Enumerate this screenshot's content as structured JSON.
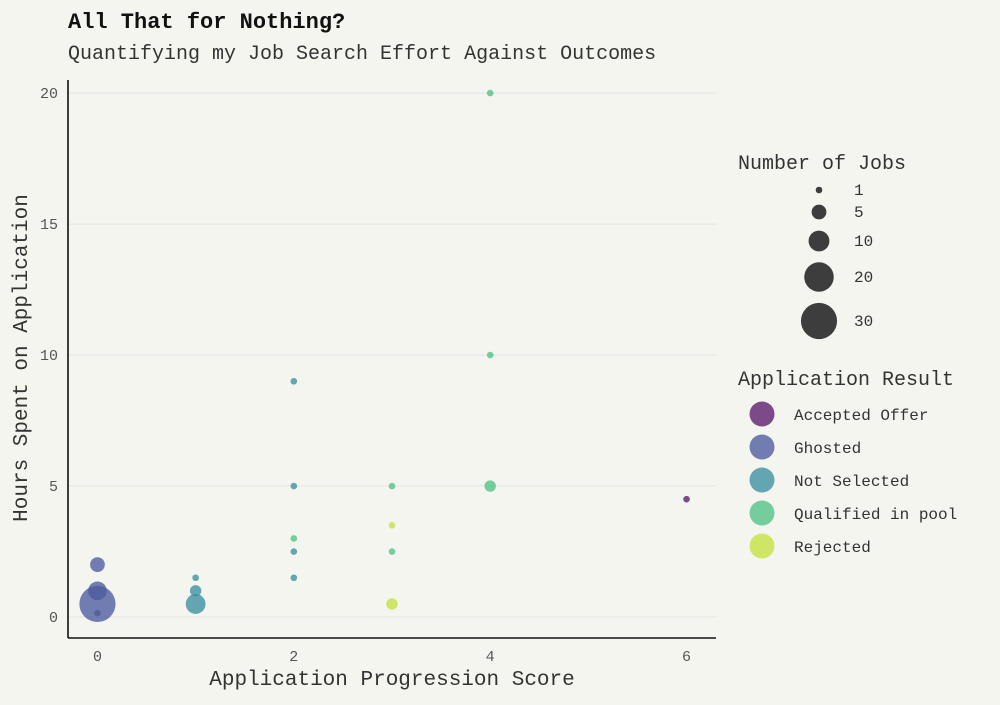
{
  "chart_data": {
    "type": "scatter",
    "title": "All That for Nothing?",
    "subtitle": "Quantifying my Job Search Effort Against Outcomes",
    "xlabel": "Application Progression Score",
    "ylabel": "Hours Spent on Application",
    "xlim": [
      -0.3,
      6.3
    ],
    "ylim": [
      -0.8,
      20.5
    ],
    "x_ticks": [
      0,
      2,
      4,
      6
    ],
    "y_ticks": [
      0,
      5,
      10,
      15,
      20
    ],
    "grid": "horizontal",
    "size_legend": {
      "title": "Number of Jobs",
      "values": [
        1,
        5,
        10,
        20,
        30
      ]
    },
    "color_legend": {
      "title": "Application Result",
      "categories": [
        "Accepted Offer",
        "Ghosted",
        "Not Selected",
        "Qualified in pool",
        "Rejected"
      ],
      "colors": [
        "#5b1a6b",
        "#4c5b9d",
        "#3a8f9f",
        "#4fc284",
        "#c4e03e"
      ]
    },
    "points": [
      {
        "x": 0,
        "y": 0.5,
        "n": 30,
        "result": "Ghosted"
      },
      {
        "x": 0,
        "y": 1,
        "n": 8,
        "result": "Ghosted"
      },
      {
        "x": 0,
        "y": 2,
        "n": 5,
        "result": "Ghosted"
      },
      {
        "x": 0,
        "y": 0.15,
        "n": 1,
        "result": "Ghosted"
      },
      {
        "x": 1,
        "y": 0.5,
        "n": 9,
        "result": "Not Selected"
      },
      {
        "x": 1,
        "y": 1,
        "n": 3,
        "result": "Not Selected"
      },
      {
        "x": 1,
        "y": 1.5,
        "n": 1,
        "result": "Not Selected"
      },
      {
        "x": 2,
        "y": 9,
        "n": 1,
        "result": "Not Selected"
      },
      {
        "x": 2,
        "y": 5,
        "n": 1,
        "result": "Not Selected"
      },
      {
        "x": 2,
        "y": 2.5,
        "n": 1,
        "result": "Not Selected"
      },
      {
        "x": 2,
        "y": 1.5,
        "n": 1,
        "result": "Not Selected"
      },
      {
        "x": 2,
        "y": 3,
        "n": 1,
        "result": "Qualified in pool"
      },
      {
        "x": 3,
        "y": 5,
        "n": 1,
        "result": "Qualified in pool"
      },
      {
        "x": 3,
        "y": 2.5,
        "n": 1,
        "result": "Qualified in pool"
      },
      {
        "x": 3,
        "y": 3.5,
        "n": 1,
        "result": "Rejected"
      },
      {
        "x": 3,
        "y": 0.5,
        "n": 3,
        "result": "Rejected"
      },
      {
        "x": 4,
        "y": 20,
        "n": 1,
        "result": "Qualified in pool"
      },
      {
        "x": 4,
        "y": 10,
        "n": 1,
        "result": "Qualified in pool"
      },
      {
        "x": 4,
        "y": 5,
        "n": 3,
        "result": "Qualified in pool"
      },
      {
        "x": 6,
        "y": 4.5,
        "n": 1,
        "result": "Accepted Offer"
      }
    ]
  }
}
